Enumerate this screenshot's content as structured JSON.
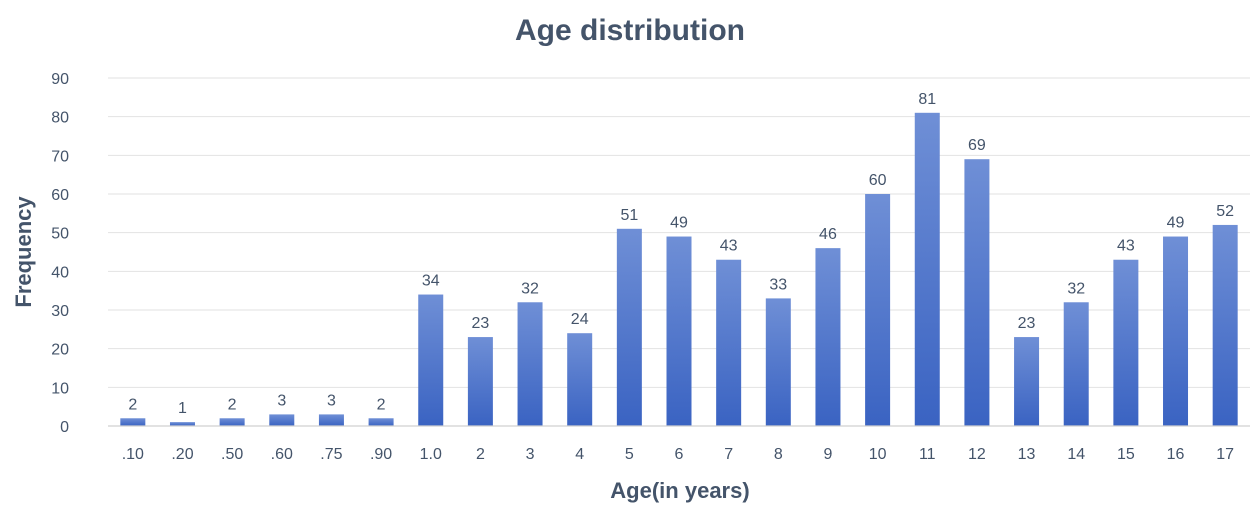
{
  "chart_data": {
    "type": "bar",
    "title": "Age distribution",
    "xlabel": "Age(in years)",
    "ylabel": "Frequency",
    "categories": [
      ".10",
      ".20",
      ".50",
      ".60",
      ".75",
      ".90",
      "1.0",
      "2",
      "3",
      "4",
      "5",
      "6",
      "7",
      "8",
      "9",
      "10",
      "11",
      "12",
      "13",
      "14",
      "15",
      "16",
      "17"
    ],
    "values": [
      2,
      1,
      2,
      3,
      3,
      2,
      34,
      23,
      32,
      24,
      51,
      49,
      43,
      33,
      46,
      60,
      81,
      69,
      23,
      32,
      43,
      49,
      52
    ],
    "ylim": [
      0,
      90
    ],
    "yticks": [
      0,
      10,
      20,
      30,
      40,
      50,
      60,
      70,
      80,
      90
    ],
    "grid": true,
    "legend": "none",
    "colors": {
      "bar_top": "#6f8fd6",
      "bar_bottom": "#3a63c2",
      "text": "#44546a",
      "grid": "#e2e2e2"
    }
  }
}
